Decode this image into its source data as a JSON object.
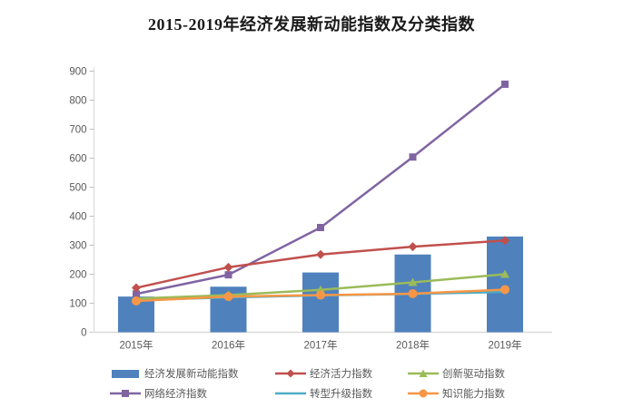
{
  "title": "2015-2019年经济发展新动能指数及分类指数",
  "colors": {
    "bar_blue": "#4F81BD",
    "red": "#C0504D",
    "green": "#9BBB59",
    "purple": "#8064A2",
    "cyan": "#4BACC6",
    "orange": "#F79646",
    "axis_text": "#595959",
    "axis_line": "#D9D9D9"
  },
  "chart_data": {
    "type": "bar",
    "subtype": "bar-line combo chart",
    "title": "2015-2019年经济发展新动能指数及分类指数",
    "categories": [
      "2015年",
      "2016年",
      "2017年",
      "2018年",
      "2019年"
    ],
    "series": [
      {
        "name": "经济发展新动能指数",
        "type": "bar",
        "marker": "none",
        "color": "#4F81BD",
        "values": [
          123,
          157,
          206,
          268,
          330
        ]
      },
      {
        "name": "经济活力指数",
        "type": "line",
        "marker": "diamond",
        "color": "#C0504D",
        "values": [
          153,
          224,
          268,
          295,
          316
        ]
      },
      {
        "name": "创新驱动指数",
        "type": "line",
        "marker": "triangle",
        "color": "#9BBB59",
        "values": [
          116,
          128,
          146,
          172,
          200
        ]
      },
      {
        "name": "网络经济指数",
        "type": "line",
        "marker": "square",
        "color": "#8064A2",
        "values": [
          132,
          198,
          361,
          604,
          855
        ]
      },
      {
        "name": "转型升级指数",
        "type": "line",
        "marker": "none",
        "color": "#4BACC6",
        "values": [
          111,
          120,
          127,
          132,
          139
        ]
      },
      {
        "name": "知识能力指数",
        "type": "line",
        "marker": "circle",
        "color": "#F79646",
        "values": [
          108,
          123,
          128,
          133,
          147
        ]
      }
    ],
    "xlabel": "",
    "ylabel": "",
    "ylim": [
      0,
      900
    ],
    "ytick_interval": 100,
    "yticks": [
      0,
      100,
      200,
      300,
      400,
      500,
      600,
      700,
      800,
      900
    ],
    "grid": false,
    "legend_position": "bottom"
  }
}
